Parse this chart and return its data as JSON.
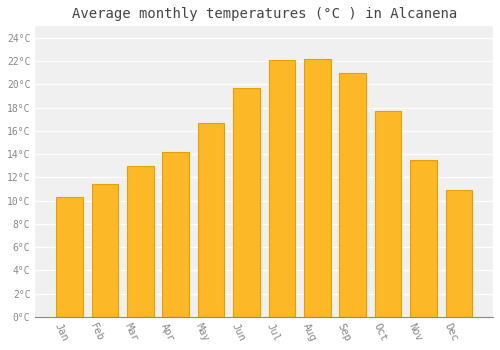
{
  "months": [
    "Jan",
    "Feb",
    "Mar",
    "Apr",
    "May",
    "Jun",
    "Jul",
    "Aug",
    "Sep",
    "Oct",
    "Nov",
    "Dec"
  ],
  "values": [
    10.3,
    11.4,
    13.0,
    14.2,
    16.7,
    19.7,
    22.1,
    22.2,
    21.0,
    17.7,
    13.5,
    10.9
  ],
  "bar_color": "#FDB827",
  "bar_edge_color": "#E8A000",
  "background_color": "#FFFFFF",
  "plot_bg_color": "#F0F0F0",
  "title": "Average monthly temperatures (°C ) in Alcanena",
  "title_fontsize": 10,
  "ylim": [
    0,
    25
  ],
  "ytick_step": 2,
  "grid_color": "#FFFFFF",
  "tick_label_color": "#888888",
  "title_color": "#444444",
  "font_family": "monospace",
  "xlabel_rotation": -65
}
